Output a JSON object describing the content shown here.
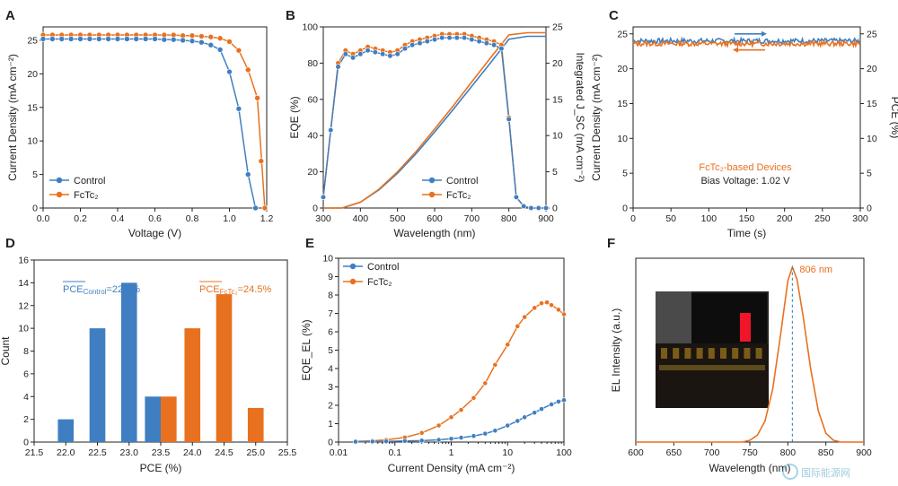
{
  "colors": {
    "control": "#3f7fc1",
    "fctc2": "#e8711f",
    "axis": "#222222",
    "dash": "#3f8fd0"
  },
  "chart_data": [
    {
      "id": "A",
      "type": "line",
      "panel_label": "A",
      "xlabel": "Voltage (V)",
      "ylabel": "Current Density (mA cm⁻²)",
      "xlim": [
        0,
        1.2
      ],
      "ylim": [
        0,
        27
      ],
      "xticks": [
        "0.0",
        "0.2",
        "0.4",
        "0.6",
        "0.8",
        "1.0",
        "1.2"
      ],
      "yticks": [
        "0",
        "5",
        "10",
        "15",
        "20",
        "25"
      ],
      "legend": [
        "Control",
        "FcTc₂"
      ],
      "series": [
        {
          "name": "Control",
          "x": [
            0,
            0.05,
            0.1,
            0.15,
            0.2,
            0.25,
            0.3,
            0.35,
            0.4,
            0.45,
            0.5,
            0.55,
            0.6,
            0.65,
            0.7,
            0.75,
            0.8,
            0.85,
            0.9,
            0.95,
            1.0,
            1.05,
            1.1,
            1.14
          ],
          "y": [
            25.2,
            25.2,
            25.2,
            25.2,
            25.2,
            25.2,
            25.2,
            25.2,
            25.2,
            25.2,
            25.2,
            25.2,
            25.2,
            25.1,
            25.1,
            25.0,
            24.9,
            24.7,
            24.3,
            23.6,
            20.3,
            14.8,
            5.0,
            0
          ]
        },
        {
          "name": "FcTc₂",
          "x": [
            0,
            0.05,
            0.1,
            0.15,
            0.2,
            0.25,
            0.3,
            0.35,
            0.4,
            0.45,
            0.5,
            0.55,
            0.6,
            0.65,
            0.7,
            0.75,
            0.8,
            0.85,
            0.9,
            0.95,
            1.0,
            1.05,
            1.1,
            1.15,
            1.19
          ],
          "y": [
            25.8,
            25.8,
            25.8,
            25.8,
            25.8,
            25.8,
            25.8,
            25.8,
            25.8,
            25.8,
            25.8,
            25.8,
            25.8,
            25.8,
            25.8,
            25.7,
            25.7,
            25.6,
            25.5,
            25.3,
            24.8,
            23.5,
            20.6,
            16.4,
            0
          ]
        },
        {
          "name": "FcTc₂-end",
          "x": [
            1.15,
            1.17,
            1.19
          ],
          "y": [
            16.4,
            7.0,
            0
          ]
        }
      ]
    },
    {
      "id": "B",
      "type": "line",
      "panel_label": "B",
      "xlabel": "Wavelength (nm)",
      "ylabel": "EQE (%)",
      "y2label": "Integrated J_SC (mA cm⁻²)",
      "xlim": [
        300,
        900
      ],
      "ylim": [
        0,
        100
      ],
      "y2lim": [
        0,
        25
      ],
      "xticks": [
        "300",
        "400",
        "500",
        "600",
        "700",
        "800",
        "900"
      ],
      "yticks": [
        "0",
        "20",
        "40",
        "60",
        "80",
        "100"
      ],
      "y2ticks": [
        "0",
        "5",
        "10",
        "15",
        "20",
        "25"
      ],
      "legend": [
        "Control",
        "FcTc₂"
      ],
      "series": [
        {
          "name": "Control",
          "x": [
            300,
            320,
            340,
            360,
            380,
            400,
            420,
            440,
            460,
            480,
            500,
            520,
            540,
            560,
            580,
            600,
            620,
            640,
            660,
            680,
            700,
            720,
            740,
            760,
            780,
            800,
            820,
            840,
            860,
            880,
            900
          ],
          "y": [
            6,
            43,
            78,
            85,
            83,
            85,
            87,
            86,
            85,
            84,
            85,
            88,
            90,
            91,
            92,
            93,
            94,
            94,
            94,
            94,
            93,
            92,
            91,
            90,
            88,
            49,
            6,
            1,
            0,
            0,
            0
          ]
        },
        {
          "name": "FcTc₂",
          "x": [
            300,
            320,
            340,
            360,
            380,
            400,
            420,
            440,
            460,
            480,
            500,
            520,
            540,
            560,
            580,
            600,
            620,
            640,
            660,
            680,
            700,
            720,
            740,
            760,
            780,
            800,
            820,
            840,
            860,
            880,
            900
          ],
          "y": [
            6,
            43,
            80,
            87,
            85,
            87,
            89,
            88,
            87,
            86,
            87,
            90,
            92,
            93,
            94,
            95,
            96,
            96,
            96,
            96,
            95,
            94,
            93,
            92,
            90,
            50,
            6,
            1,
            0,
            0,
            0
          ]
        },
        {
          "name": "Integrated Control",
          "axis": "y2",
          "x": [
            300,
            350,
            400,
            450,
            500,
            550,
            600,
            650,
            700,
            750,
            800,
            850,
            900
          ],
          "y": [
            0,
            0,
            0.8,
            2.5,
            4.8,
            7.5,
            10.5,
            13.6,
            16.8,
            20.0,
            23.3,
            23.7,
            23.7
          ]
        },
        {
          "name": "Integrated FcTc₂",
          "axis": "y2",
          "x": [
            300,
            350,
            400,
            450,
            500,
            550,
            600,
            650,
            700,
            750,
            800,
            850,
            900
          ],
          "y": [
            0,
            0,
            0.8,
            2.6,
            5.0,
            7.8,
            10.9,
            14.1,
            17.4,
            20.7,
            23.9,
            24.2,
            24.2
          ]
        }
      ]
    },
    {
      "id": "C",
      "type": "line",
      "panel_label": "C",
      "xlabel": "Time (s)",
      "ylabel": "Current Density (mA cm⁻²)",
      "y2label": "PCE (%)",
      "xlim": [
        0,
        300
      ],
      "ylim": [
        0,
        26
      ],
      "y2lim": [
        0,
        26
      ],
      "xticks": [
        "0",
        "50",
        "100",
        "150",
        "200",
        "250",
        "300"
      ],
      "yticks": [
        "0",
        "5",
        "10",
        "15",
        "20",
        "25"
      ],
      "y2ticks": [
        "0",
        "5",
        "10",
        "15",
        "20",
        "25"
      ],
      "annotations": [
        "FcTc₂-based Devices",
        "Bias Voltage: 1.02 V"
      ],
      "series": [
        {
          "name": "Current Density",
          "x": [
            0,
            300
          ],
          "y": [
            24.0,
            24.0
          ]
        },
        {
          "name": "PCE",
          "x": [
            0,
            300
          ],
          "y": [
            23.6,
            23.6
          ]
        }
      ]
    },
    {
      "id": "D",
      "type": "bar",
      "panel_label": "D",
      "xlabel": "PCE (%)",
      "ylabel": "Count",
      "xlim": [
        21.5,
        25.5
      ],
      "ylim": [
        0,
        16
      ],
      "xticks": [
        "21.5",
        "22.0",
        "22.5",
        "23.0",
        "23.5",
        "24.0",
        "24.5",
        "25.0",
        "25.5"
      ],
      "yticks": [
        "0",
        "2",
        "4",
        "6",
        "8",
        "10",
        "12",
        "14",
        "16"
      ],
      "annotations": [
        "PCE",
        "Control",
        "=22.5%",
        "PCE",
        "FcTc₂",
        "=24.5%"
      ],
      "series": [
        {
          "name": "Control",
          "x": [
            22.0,
            22.5,
            23.0,
            23.5
          ],
          "values": [
            2,
            10,
            14,
            4
          ]
        },
        {
          "name": "FcTc₂",
          "x": [
            23.5,
            24.0,
            24.5,
            25.0
          ],
          "values": [
            4,
            10,
            13,
            3
          ]
        }
      ]
    },
    {
      "id": "E",
      "type": "line",
      "panel_label": "E",
      "xlabel": "Current Density (mA cm⁻²)",
      "ylabel": "EQE_EL (%)",
      "xscale": "log",
      "xlim": [
        0.01,
        100
      ],
      "ylim": [
        0,
        10
      ],
      "xticks": [
        "0.01",
        "0.1",
        "1",
        "10",
        "100"
      ],
      "yticks": [
        "0",
        "1",
        "2",
        "3",
        "4",
        "5",
        "6",
        "7",
        "8",
        "9",
        "10"
      ],
      "legend": [
        "Control",
        "FcTc₂"
      ],
      "series": [
        {
          "name": "Control",
          "x": [
            0.02,
            0.04,
            0.07,
            0.15,
            0.3,
            0.6,
            1,
            1.5,
            2.5,
            4,
            6,
            10,
            15,
            20,
            30,
            40,
            60,
            80,
            100
          ],
          "y": [
            0.02,
            0.03,
            0.04,
            0.06,
            0.08,
            0.12,
            0.18,
            0.24,
            0.33,
            0.46,
            0.62,
            0.9,
            1.15,
            1.35,
            1.6,
            1.8,
            2.05,
            2.2,
            2.28
          ]
        },
        {
          "name": "FcTc₂",
          "x": [
            0.02,
            0.04,
            0.07,
            0.15,
            0.3,
            0.6,
            1,
            1.5,
            2.5,
            4,
            6,
            10,
            15,
            20,
            30,
            40,
            50,
            60,
            80,
            100
          ],
          "y": [
            0.04,
            0.07,
            0.12,
            0.25,
            0.5,
            0.9,
            1.35,
            1.75,
            2.4,
            3.2,
            4.2,
            5.3,
            6.3,
            6.8,
            7.3,
            7.55,
            7.6,
            7.45,
            7.2,
            6.95
          ]
        }
      ]
    },
    {
      "id": "F",
      "type": "line",
      "panel_label": "F",
      "xlabel": "Wavelength (nm)",
      "ylabel": "EL Intensity (a.u.)",
      "xlim": [
        600,
        900
      ],
      "xticks": [
        "600",
        "650",
        "700",
        "750",
        "800",
        "850",
        "900"
      ],
      "annotations": [
        "806 nm"
      ],
      "peak_nm": 806,
      "series": [
        {
          "name": "EL",
          "x": [
            600,
            650,
            700,
            740,
            750,
            760,
            770,
            780,
            790,
            800,
            806,
            812,
            820,
            830,
            840,
            850,
            860,
            870,
            900
          ],
          "y": [
            0,
            0,
            0,
            0,
            0.01,
            0.04,
            0.12,
            0.3,
            0.6,
            0.92,
            1.0,
            0.93,
            0.72,
            0.42,
            0.18,
            0.05,
            0.01,
            0,
            0
          ]
        }
      ]
    }
  ],
  "watermark": "国际能源网"
}
